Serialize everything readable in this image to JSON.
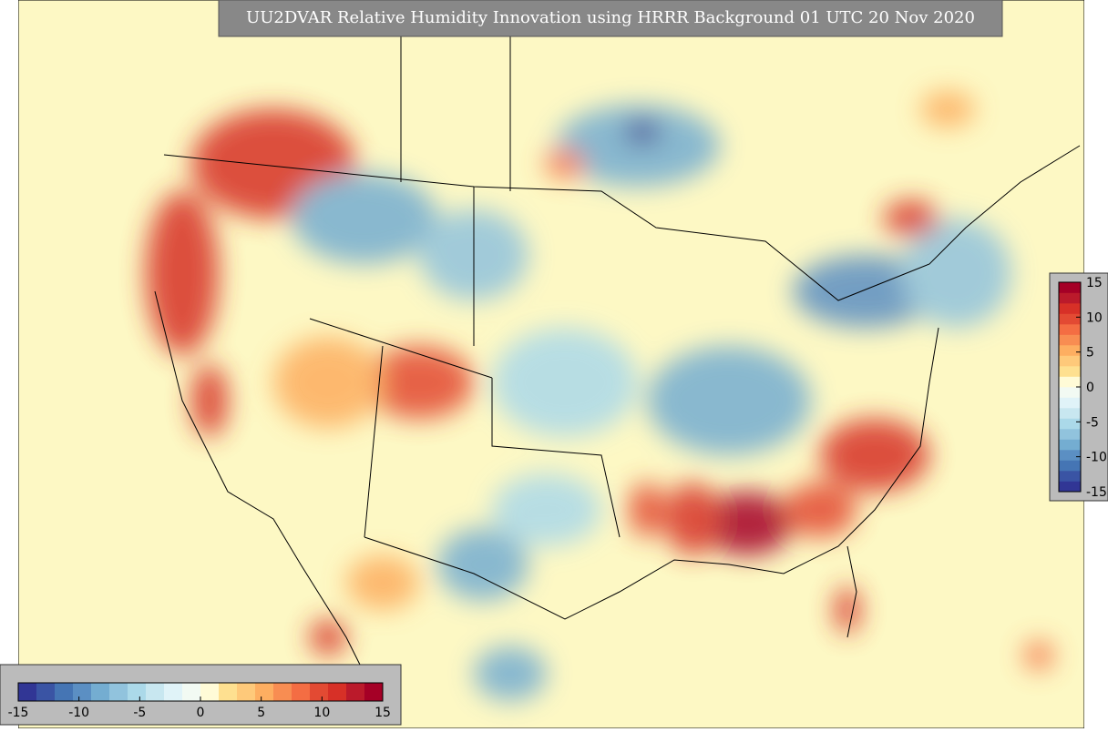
{
  "title": "UU2DVAR Relative Humidity Innovation using HRRR Background 01 UTC 20 Nov 2020",
  "colorbar_range": [
    -15,
    15
  ],
  "colors": [
    "#313695",
    "#3a54a4",
    "#4575b4",
    "#5b8fc3",
    "#74add1",
    "#91c3dd",
    "#abd9e9",
    "#c8e7f0",
    "#e0f3f8",
    "#f2faf3",
    "#fffbd7",
    "#fee090",
    "#fec97a",
    "#fdae61",
    "#f88d52",
    "#f46d43",
    "#e34a33",
    "#d73027",
    "#bb1a2b",
    "#a50026"
  ],
  "colorbar_vertical": {
    "ticks": [
      15,
      10,
      5,
      0,
      -5,
      -10,
      -15
    ]
  },
  "colorbar_horizontal": {
    "ticks": [
      -15,
      -10,
      -5,
      0,
      5,
      10,
      15
    ]
  }
}
